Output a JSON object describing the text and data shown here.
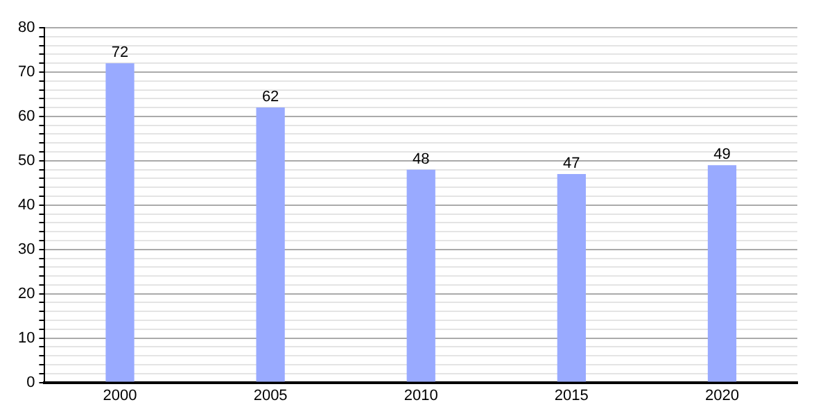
{
  "chart_data": {
    "type": "bar",
    "categories": [
      "2000",
      "2005",
      "2010",
      "2015",
      "2020"
    ],
    "values": [
      72,
      62,
      48,
      47,
      49
    ],
    "color": "#99aaff",
    "data_labels": true,
    "ylim": [
      0,
      80
    ],
    "yticks": [
      0,
      {
        "value": 2,
        "label": null
      },
      {
        "value": 4,
        "label": null
      },
      {
        "value": 6,
        "label": null
      },
      {
        "value": 8,
        "label": null
      },
      10,
      {
        "value": 12,
        "label": null
      },
      {
        "value": 14,
        "label": null
      },
      {
        "value": 16,
        "label": null
      },
      {
        "value": 18,
        "label": null
      },
      20,
      {
        "value": 22,
        "label": null
      },
      {
        "value": 24,
        "label": null
      },
      {
        "value": 26,
        "label": null
      },
      {
        "value": 28,
        "label": null
      },
      30,
      {
        "value": 32,
        "label": null
      },
      {
        "value": 34,
        "label": null
      },
      {
        "value": 36,
        "label": null
      },
      {
        "value": 38,
        "label": null
      },
      40,
      {
        "value": 42,
        "label": null
      },
      {
        "value": 44,
        "label": null
      },
      {
        "value": 46,
        "label": null
      },
      {
        "value": 48,
        "label": null
      },
      50,
      {
        "value": 52,
        "label": null
      },
      {
        "value": 54,
        "label": null
      },
      {
        "value": 56,
        "label": null
      },
      {
        "value": 58,
        "label": null
      },
      60,
      {
        "value": 62,
        "label": null
      },
      {
        "value": 64,
        "label": null
      },
      {
        "value": 66,
        "label": null
      },
      {
        "value": 68,
        "label": null
      },
      70,
      {
        "value": 72,
        "label": null
      },
      {
        "value": 74,
        "label": null
      },
      {
        "value": 76,
        "label": null
      },
      {
        "value": 78,
        "label": null
      },
      80
    ],
    "grid": "y",
    "legend": false
  }
}
